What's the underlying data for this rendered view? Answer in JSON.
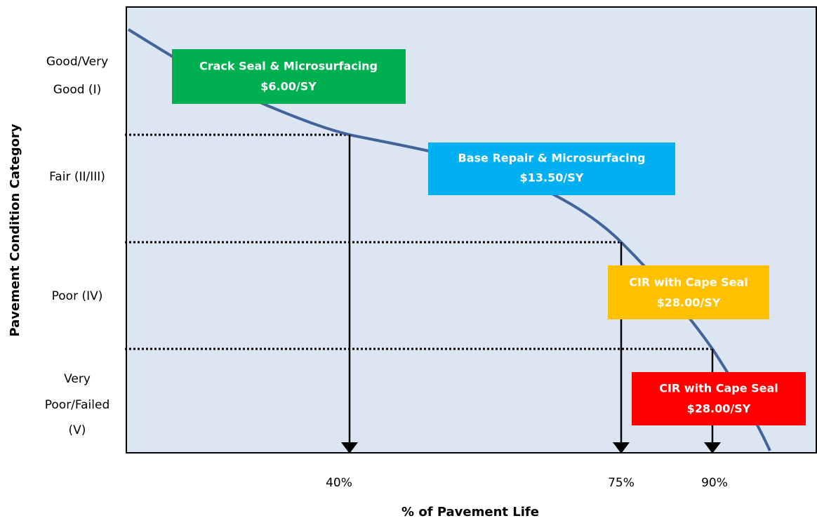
{
  "y_axis_label": "Pavement Condition Category",
  "x_axis_label": "% of Pavement Life",
  "categories": [
    {
      "lines": [
        "Good/Very",
        "Good (I)"
      ]
    },
    {
      "lines": [
        "Fair (II/III)"
      ]
    },
    {
      "lines": [
        "Poor (IV)"
      ]
    },
    {
      "lines": [
        "Very",
        "Poor/Failed",
        "(V)"
      ]
    }
  ],
  "x_markers": [
    "40%",
    "75%",
    "90%"
  ],
  "treatments": [
    {
      "name": "Crack Seal & Microsurfacing",
      "cost": "$6.00/SY"
    },
    {
      "name": "Base Repair & Microsurfacing",
      "cost": "$13.50/SY"
    },
    {
      "name": "CIR with Cape Seal",
      "cost": "$28.00/SY"
    },
    {
      "name": "CIR with Cape Seal",
      "cost": "$28.00/SY"
    }
  ]
}
